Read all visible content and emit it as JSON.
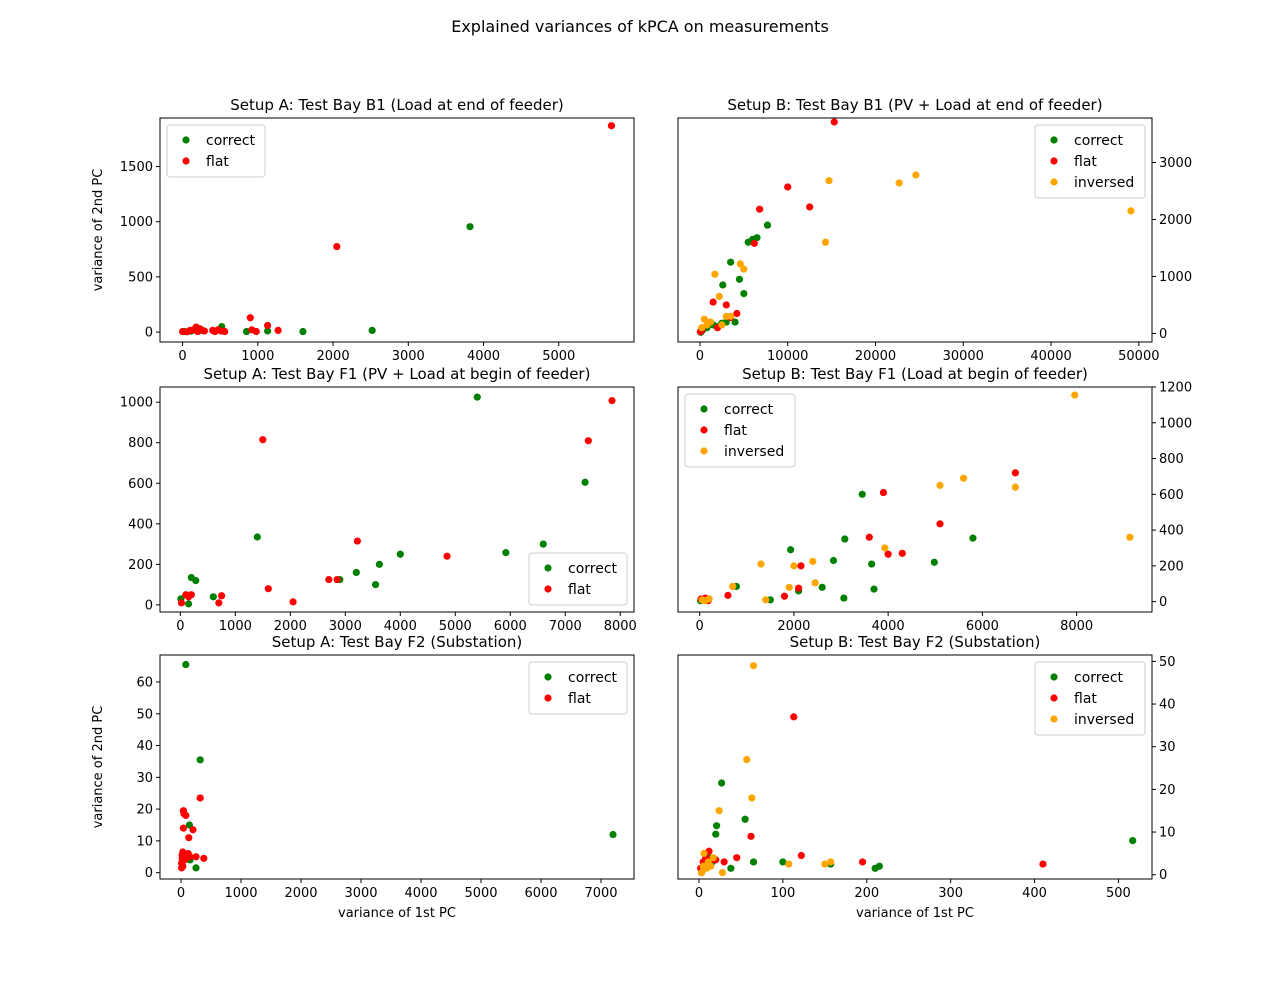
{
  "figure": {
    "title": "Explained variances of kPCA on measurements"
  },
  "colors": {
    "correct": "#008000",
    "flat": "#ff0000",
    "inversed": "#ffa500"
  },
  "chart_data": [
    {
      "type": "scatter",
      "title": "Setup A: Test Bay B1 (Load at end of feeder)",
      "xlabel": "",
      "ylabel": "variance of 2nd PC",
      "xlim": [
        -300,
        6000
      ],
      "ylim": [
        -90,
        1940
      ],
      "xticks": [
        0,
        1000,
        2000,
        3000,
        4000,
        5000
      ],
      "yticks": [
        0,
        500,
        1000,
        1500
      ],
      "y_axis_side": "left",
      "legend": "upper left",
      "series": [
        {
          "name": "correct",
          "color": "#008000",
          "points": [
            [
              20,
              5
            ],
            [
              110,
              8
            ],
            [
              200,
              10
            ],
            [
              260,
              15
            ],
            [
              520,
              50
            ],
            [
              850,
              5
            ],
            [
              1130,
              10
            ],
            [
              1600,
              5
            ],
            [
              2520,
              15
            ],
            [
              3820,
              955
            ]
          ]
        },
        {
          "name": "flat",
          "color": "#ff0000",
          "points": [
            [
              0,
              5
            ],
            [
              60,
              3
            ],
            [
              100,
              15
            ],
            [
              150,
              20
            ],
            [
              180,
              45
            ],
            [
              200,
              5
            ],
            [
              230,
              30
            ],
            [
              290,
              10
            ],
            [
              400,
              15
            ],
            [
              430,
              5
            ],
            [
              470,
              20
            ],
            [
              510,
              10
            ],
            [
              560,
              5
            ],
            [
              900,
              130
            ],
            [
              920,
              20
            ],
            [
              980,
              5
            ],
            [
              1130,
              60
            ],
            [
              1270,
              15
            ],
            [
              2050,
              775
            ],
            [
              5700,
              1870
            ]
          ]
        }
      ]
    },
    {
      "type": "scatter",
      "title": "Setup B: Test Bay B1 (PV + Load at end of feeder)",
      "xlabel": "",
      "ylabel": "",
      "xlim": [
        -2500,
        51500
      ],
      "ylim": [
        -150,
        3780
      ],
      "xticks": [
        0,
        10000,
        20000,
        30000,
        40000,
        50000
      ],
      "yticks": [
        0,
        1000,
        2000,
        3000
      ],
      "y_axis_side": "right",
      "legend": "upper right",
      "series": [
        {
          "name": "correct",
          "color": "#008000",
          "points": [
            [
              100,
              20
            ],
            [
              300,
              60
            ],
            [
              800,
              100
            ],
            [
              1500,
              150
            ],
            [
              2000,
              120
            ],
            [
              2500,
              180
            ],
            [
              2600,
              850
            ],
            [
              3000,
              200
            ],
            [
              3500,
              1250
            ],
            [
              4000,
              200
            ],
            [
              4500,
              950
            ],
            [
              5000,
              700
            ],
            [
              5500,
              1600
            ],
            [
              6000,
              1650
            ],
            [
              6500,
              1680
            ],
            [
              7700,
              1900
            ]
          ]
        },
        {
          "name": "flat",
          "color": "#ff0000",
          "points": [
            [
              50,
              30
            ],
            [
              150,
              50
            ],
            [
              250,
              80
            ],
            [
              1500,
              550
            ],
            [
              2000,
              100
            ],
            [
              3000,
              500
            ],
            [
              3500,
              280
            ],
            [
              4200,
              350
            ],
            [
              6200,
              1580
            ],
            [
              6800,
              2180
            ],
            [
              10000,
              2570
            ],
            [
              12500,
              2220
            ],
            [
              15300,
              3710
            ]
          ]
        },
        {
          "name": "inversed",
          "color": "#ffa500",
          "points": [
            [
              200,
              100
            ],
            [
              500,
              250
            ],
            [
              800,
              150
            ],
            [
              1200,
              200
            ],
            [
              1700,
              1040
            ],
            [
              2200,
              650
            ],
            [
              2500,
              150
            ],
            [
              3000,
              300
            ],
            [
              3500,
              300
            ],
            [
              4600,
              1220
            ],
            [
              5000,
              1130
            ],
            [
              14300,
              1600
            ],
            [
              14700,
              2680
            ],
            [
              22700,
              2640
            ],
            [
              24600,
              2780
            ],
            [
              49100,
              2150
            ]
          ]
        }
      ]
    },
    {
      "type": "scatter",
      "title": "Setup A: Test Bay F1 (PV + Load at begin of feeder)",
      "xlabel": "",
      "ylabel": "",
      "xlim": [
        -370,
        8250
      ],
      "ylim": [
        -35,
        1075
      ],
      "xticks": [
        0,
        1000,
        2000,
        3000,
        4000,
        5000,
        6000,
        7000,
        8000
      ],
      "yticks": [
        0,
        200,
        400,
        600,
        800,
        1000
      ],
      "y_axis_side": "left",
      "legend": "lower right",
      "series": [
        {
          "name": "correct",
          "color": "#008000",
          "points": [
            [
              10,
              30
            ],
            [
              150,
              5
            ],
            [
              200,
              135
            ],
            [
              280,
              120
            ],
            [
              600,
              40
            ],
            [
              1400,
              335
            ],
            [
              2900,
              125
            ],
            [
              3200,
              160
            ],
            [
              3550,
              100
            ],
            [
              3620,
              200
            ],
            [
              4000,
              250
            ],
            [
              5400,
              1025
            ],
            [
              5920,
              258
            ],
            [
              6600,
              300
            ],
            [
              7360,
              605
            ]
          ]
        },
        {
          "name": "flat",
          "color": "#ff0000",
          "points": [
            [
              20,
              10
            ],
            [
              100,
              50
            ],
            [
              150,
              40
            ],
            [
              200,
              50
            ],
            [
              700,
              10
            ],
            [
              750,
              45
            ],
            [
              1500,
              815
            ],
            [
              1600,
              80
            ],
            [
              2050,
              15
            ],
            [
              2700,
              125
            ],
            [
              2850,
              125
            ],
            [
              3220,
              315
            ],
            [
              4850,
              240
            ],
            [
              7420,
              810
            ],
            [
              7850,
              1008
            ]
          ]
        }
      ]
    },
    {
      "type": "scatter",
      "title": "Setup B: Test Bay F1 (Load at begin of feeder)",
      "xlabel": "",
      "ylabel": "",
      "xlim": [
        -460,
        9600
      ],
      "ylim": [
        -58,
        1200
      ],
      "xticks": [
        0,
        2000,
        4000,
        6000,
        8000
      ],
      "yticks": [
        0,
        200,
        400,
        600,
        800,
        1000,
        1200
      ],
      "y_axis_side": "right",
      "legend": "upper left",
      "series": [
        {
          "name": "correct",
          "color": "#008000",
          "points": [
            [
              20,
              5
            ],
            [
              50,
              10
            ],
            [
              100,
              15
            ],
            [
              150,
              8
            ],
            [
              780,
              85
            ],
            [
              1500,
              10
            ],
            [
              1930,
              290
            ],
            [
              2100,
              60
            ],
            [
              2600,
              80
            ],
            [
              2840,
              230
            ],
            [
              3060,
              20
            ],
            [
              3080,
              350
            ],
            [
              3450,
              600
            ],
            [
              3650,
              210
            ],
            [
              3700,
              70
            ],
            [
              4980,
              220
            ],
            [
              5800,
              355
            ]
          ]
        },
        {
          "name": "flat",
          "color": "#ff0000",
          "points": [
            [
              30,
              15
            ],
            [
              80,
              10
            ],
            [
              120,
              20
            ],
            [
              180,
              5
            ],
            [
              600,
              35
            ],
            [
              1800,
              30
            ],
            [
              2100,
              75
            ],
            [
              2150,
              200
            ],
            [
              3600,
              360
            ],
            [
              3900,
              610
            ],
            [
              4000,
              265
            ],
            [
              4300,
              270
            ],
            [
              5100,
              435
            ],
            [
              6700,
              720
            ]
          ]
        },
        {
          "name": "inversed",
          "color": "#ffa500",
          "points": [
            [
              50,
              10
            ],
            [
              120,
              5
            ],
            [
              200,
              15
            ],
            [
              700,
              85
            ],
            [
              1300,
              210
            ],
            [
              1400,
              10
            ],
            [
              1900,
              80
            ],
            [
              2000,
              200
            ],
            [
              2400,
              225
            ],
            [
              2450,
              105
            ],
            [
              3930,
              300
            ],
            [
              5100,
              650
            ],
            [
              5600,
              690
            ],
            [
              6700,
              640
            ],
            [
              7960,
              1155
            ],
            [
              9130,
              360
            ]
          ]
        }
      ]
    },
    {
      "type": "scatter",
      "title": "Setup A: Test Bay F2 (Substation)",
      "xlabel": "variance of 1st PC",
      "ylabel": "variance of 2nd PC",
      "xlim": [
        -350,
        7550
      ],
      "ylim": [
        -2,
        68.5
      ],
      "xticks": [
        0,
        1000,
        2000,
        3000,
        4000,
        5000,
        6000,
        7000
      ],
      "yticks": [
        0,
        10,
        20,
        30,
        40,
        50,
        60
      ],
      "y_axis_side": "left",
      "legend": "upper right",
      "series": [
        {
          "name": "correct",
          "color": "#008000",
          "points": [
            [
              80,
              65.5
            ],
            [
              140,
              15
            ],
            [
              150,
              4
            ],
            [
              250,
              1.5
            ],
            [
              320,
              35.5
            ],
            [
              7200,
              12
            ]
          ]
        },
        {
          "name": "flat",
          "color": "#ff0000",
          "points": [
            [
              10,
              1.5
            ],
            [
              10,
              3
            ],
            [
              20,
              4.5
            ],
            [
              20,
              5.5
            ],
            [
              30,
              2
            ],
            [
              30,
              6.5
            ],
            [
              40,
              14
            ],
            [
              40,
              19.5
            ],
            [
              50,
              18.5
            ],
            [
              60,
              4
            ],
            [
              80,
              18
            ],
            [
              100,
              5
            ],
            [
              120,
              6
            ],
            [
              130,
              11
            ],
            [
              150,
              5
            ],
            [
              200,
              13.5
            ],
            [
              250,
              5
            ],
            [
              320,
              23.5
            ],
            [
              380,
              4.5
            ]
          ]
        }
      ]
    },
    {
      "type": "scatter",
      "title": "Setup B: Test Bay F2 (Substation)",
      "xlabel": "variance of 1st PC",
      "ylabel": "",
      "xlim": [
        -25,
        540
      ],
      "ylim": [
        -1,
        51.5
      ],
      "xticks": [
        0,
        100,
        200,
        300,
        400,
        500
      ],
      "yticks": [
        0,
        10,
        20,
        30,
        40,
        50
      ],
      "y_axis_side": "right",
      "legend": "upper right",
      "series": [
        {
          "name": "correct",
          "color": "#008000",
          "points": [
            [
              3,
              0.5
            ],
            [
              8,
              2
            ],
            [
              12,
              4
            ],
            [
              16,
              3
            ],
            [
              20,
              9.5
            ],
            [
              21,
              11.5
            ],
            [
              27,
              21.5
            ],
            [
              38,
              1.5
            ],
            [
              55,
              13
            ],
            [
              65,
              3
            ],
            [
              100,
              3
            ],
            [
              157,
              2.5
            ],
            [
              210,
              1.5
            ],
            [
              215,
              2
            ],
            [
              517,
              8
            ]
          ]
        },
        {
          "name": "flat",
          "color": "#ff0000",
          "points": [
            [
              2,
              1.5
            ],
            [
              5,
              3
            ],
            [
              8,
              4
            ],
            [
              10,
              2.5
            ],
            [
              12,
              5.5
            ],
            [
              15,
              3.5
            ],
            [
              20,
              3.5
            ],
            [
              30,
              3
            ],
            [
              45,
              4
            ],
            [
              62,
              9
            ],
            [
              113,
              37
            ],
            [
              122,
              4.5
            ],
            [
              195,
              3
            ],
            [
              410,
              2.5
            ]
          ]
        },
        {
          "name": "inversed",
          "color": "#ffa500",
          "points": [
            [
              3,
              0.5
            ],
            [
              5,
              2
            ],
            [
              6,
              5
            ],
            [
              9,
              1.5
            ],
            [
              11,
              3
            ],
            [
              14,
              2
            ],
            [
              17,
              4
            ],
            [
              24,
              15
            ],
            [
              28,
              0.5
            ],
            [
              57,
              27
            ],
            [
              63,
              18
            ],
            [
              65,
              49
            ],
            [
              107,
              2.5
            ],
            [
              150,
              2.5
            ],
            [
              157,
              3
            ]
          ]
        }
      ]
    }
  ]
}
